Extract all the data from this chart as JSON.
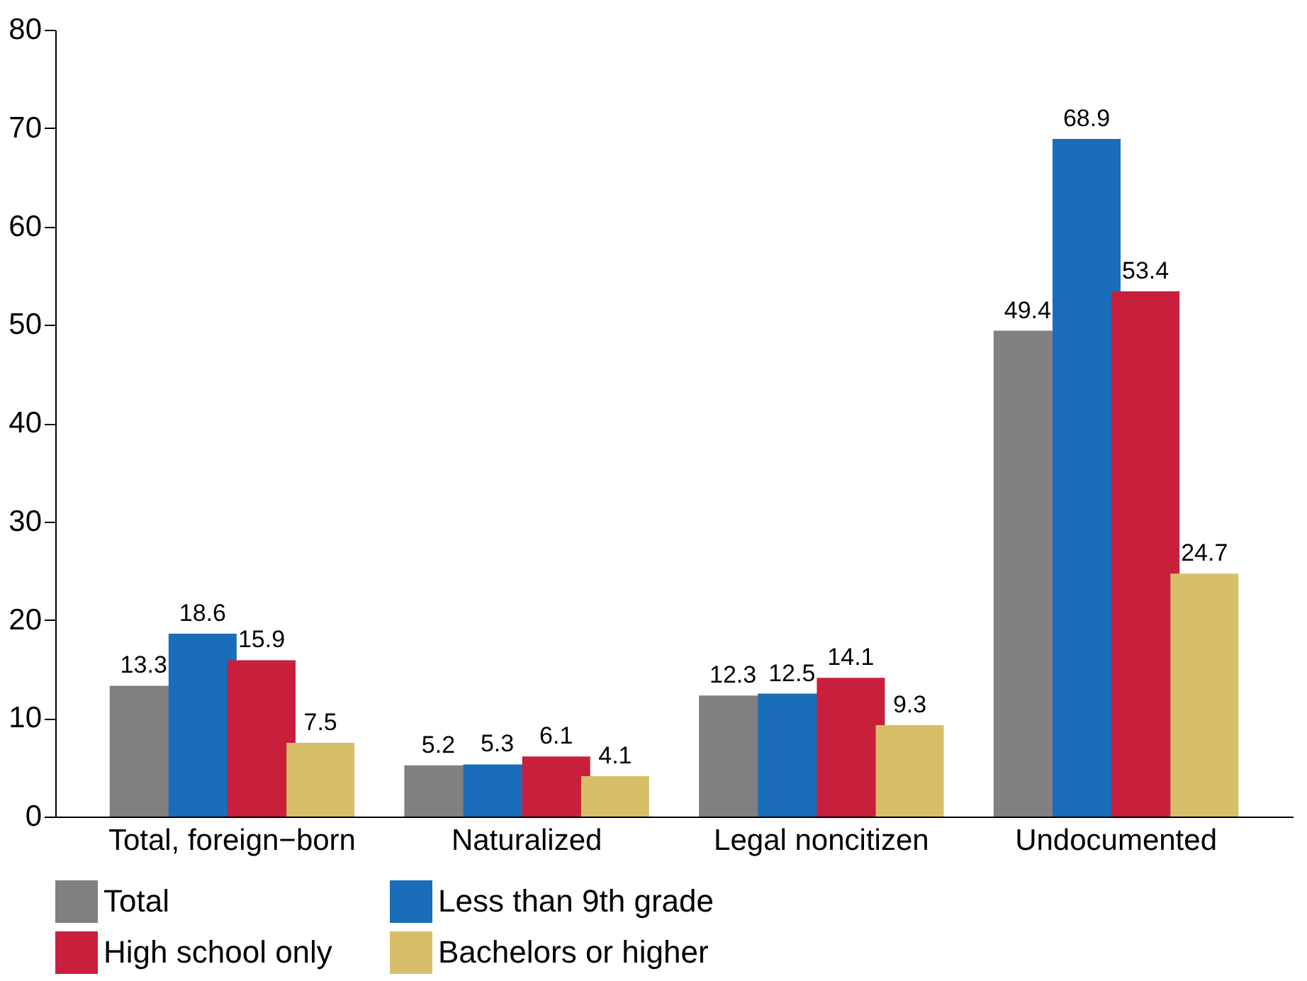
{
  "chart_data": {
    "type": "bar",
    "categories": [
      "Total, foreign−born",
      "Naturalized",
      "Legal noncitizen",
      "Undocumented"
    ],
    "series": [
      {
        "name": "Total",
        "color": "#808080",
        "values": [
          13.3,
          5.2,
          12.3,
          49.4
        ]
      },
      {
        "name": "Less than 9th grade",
        "color": "#1a6db8",
        "values": [
          18.6,
          5.3,
          12.5,
          68.9
        ]
      },
      {
        "name": "High school only",
        "color": "#c81f3c",
        "values": [
          15.9,
          6.1,
          14.1,
          53.4
        ]
      },
      {
        "name": "Bachelors or higher",
        "color": "#d9be6a",
        "values": [
          7.5,
          4.1,
          9.3,
          24.7
        ]
      }
    ],
    "ylim": [
      0,
      80
    ],
    "yticks": [
      0,
      10,
      20,
      30,
      40,
      50,
      60,
      70,
      80
    ],
    "data_labels": true,
    "legend": "bottom"
  }
}
